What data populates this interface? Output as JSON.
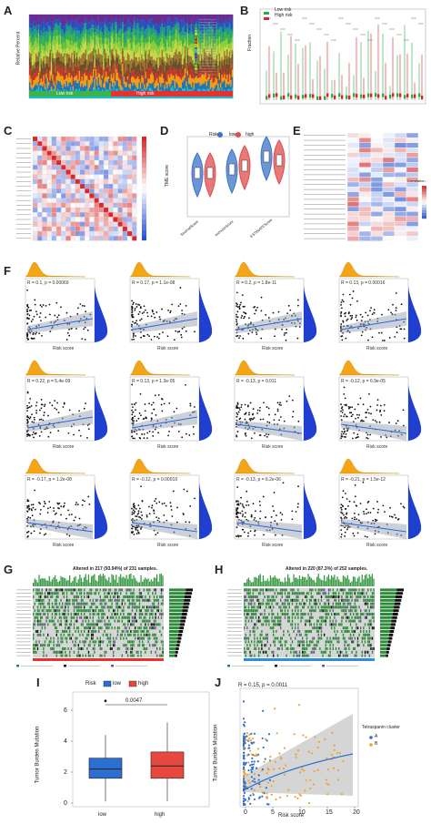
{
  "panel_letters": [
    "A",
    "B",
    "C",
    "D",
    "E",
    "F",
    "G",
    "H",
    "I",
    "J"
  ],
  "panel_A": {
    "ylabel": "Relative Percent",
    "groups": [
      "Low risk",
      "High risk"
    ],
    "group_colors": [
      "#3bb54a",
      "#e8302e"
    ]
  },
  "panel_B": {
    "legend": [
      "Low risk",
      "High risk"
    ],
    "colors": [
      "#2eaa4a",
      "#d62728"
    ],
    "ylabel": "Fraction"
  },
  "panel_D": {
    "legend_title": "Risk",
    "legend": [
      "low",
      "high"
    ],
    "colors": [
      "#3b73c8",
      "#e14b4b"
    ],
    "ylabel": "TME score",
    "categories": [
      "StromalScore",
      "ImmuneScore",
      "ESTIMATEScore"
    ]
  },
  "panel_E": {
    "legend_title": "Correlation"
  },
  "panel_G": {
    "title": "Altered in 217 (93.94%) of 231 samples."
  },
  "panel_H": {
    "title": "Altered in 220 (87.3%) of 252 samples."
  },
  "panel_F": {
    "xlabel": "Risk score",
    "stats": [
      "R = 0.1, p = 0.00069",
      "R = 0.17, p = 1.1e-08",
      "R = 0.2, p = 1.8e-11",
      "R = 0.13, p = 0.00016",
      "R = 0.22, p = 5.4e-09",
      "R = 0.13, p = 1.3e-05",
      "R = -0.13, p = 0.011",
      "R = -0.12, p = 6.9e-05",
      "R = -0.17, p = 1.2e-08",
      "R = -0.12, p = 0.00019",
      "R = -0.13, p = 6.2e-06",
      "R = -0.21, p = 1.5e-12"
    ]
  },
  "panel_I": {
    "legend_title": "Risk",
    "legend": [
      "low",
      "high"
    ],
    "colors": [
      "#2c6fd1",
      "#e8493f"
    ],
    "ylabel": "Tumor Burden Mutation",
    "categories": [
      "low",
      "high"
    ],
    "pvalue": "0.0047",
    "yticks": [
      "0",
      "2",
      "4",
      "6"
    ]
  },
  "panel_J": {
    "stat": "R = 0.15, p = 0.0011",
    "xlabel": "Risk score",
    "ylabel": "Tumor Burden Mutation",
    "legend_title": "Tetraspanin cluster",
    "legend": [
      "A",
      "B"
    ],
    "colors": [
      "#2c6fd1",
      "#f0a030"
    ],
    "xticks": [
      "0",
      "5",
      "10",
      "15",
      "20"
    ]
  }
}
